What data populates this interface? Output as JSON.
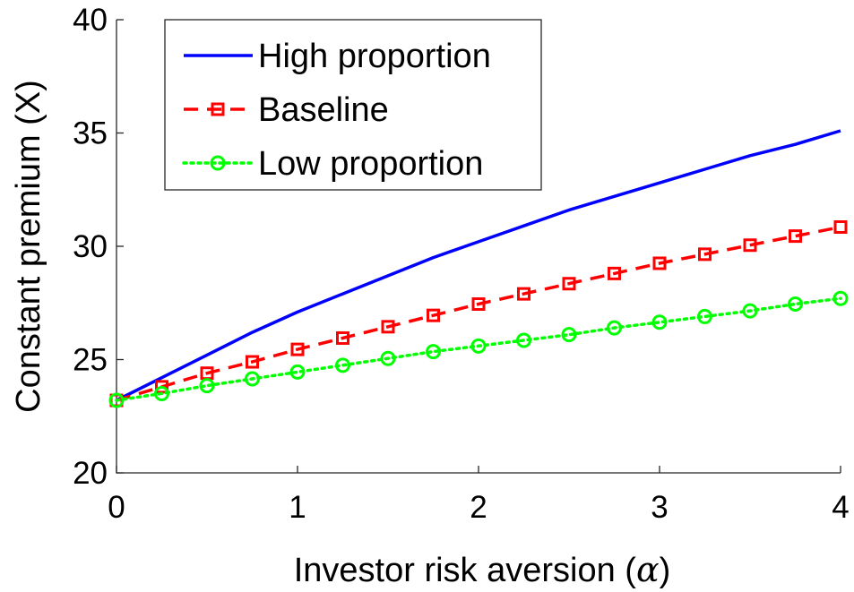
{
  "chart_data": {
    "type": "line",
    "xlabel_text": "Investor risk aversion (",
    "xlabel_symbol": "α",
    "xlabel_close": ")",
    "ylabel": "Constant premium (X)",
    "xlim": [
      0,
      4
    ],
    "ylim": [
      20,
      40
    ],
    "xticks": [
      0,
      1,
      2,
      3,
      4
    ],
    "yticks": [
      20,
      25,
      30,
      35,
      40
    ],
    "grid": false,
    "legend_position": "top-left",
    "series": [
      {
        "name": "High proportion",
        "color": "#0000ff",
        "line_style": "solid",
        "marker": "none",
        "x": [
          0,
          0.25,
          0.5,
          0.75,
          1,
          1.25,
          1.5,
          1.75,
          2,
          2.25,
          2.5,
          2.75,
          3,
          3.25,
          3.5,
          3.75,
          4
        ],
        "y": [
          23.2,
          24.2,
          25.2,
          26.2,
          27.1,
          27.9,
          28.7,
          29.5,
          30.2,
          30.9,
          31.6,
          32.2,
          32.8,
          33.4,
          34.0,
          34.5,
          35.1
        ]
      },
      {
        "name": "Baseline",
        "color": "#ff0000",
        "line_style": "dashed",
        "marker": "square",
        "x": [
          0,
          0.25,
          0.5,
          0.75,
          1,
          1.25,
          1.5,
          1.75,
          2,
          2.25,
          2.5,
          2.75,
          3,
          3.25,
          3.5,
          3.75,
          4
        ],
        "y": [
          23.2,
          23.8,
          24.4,
          24.9,
          25.45,
          25.95,
          26.45,
          26.95,
          27.45,
          27.9,
          28.35,
          28.8,
          29.25,
          29.65,
          30.05,
          30.45,
          30.85
        ]
      },
      {
        "name": "Low proportion",
        "color": "#00ff00",
        "line_style": "dotted",
        "marker": "circle",
        "x": [
          0,
          0.25,
          0.5,
          0.75,
          1,
          1.25,
          1.5,
          1.75,
          2,
          2.25,
          2.5,
          2.75,
          3,
          3.25,
          3.5,
          3.75,
          4
        ],
        "y": [
          23.2,
          23.5,
          23.85,
          24.15,
          24.45,
          24.75,
          25.05,
          25.35,
          25.6,
          25.85,
          26.1,
          26.4,
          26.65,
          26.9,
          27.15,
          27.45,
          27.7
        ]
      }
    ]
  }
}
